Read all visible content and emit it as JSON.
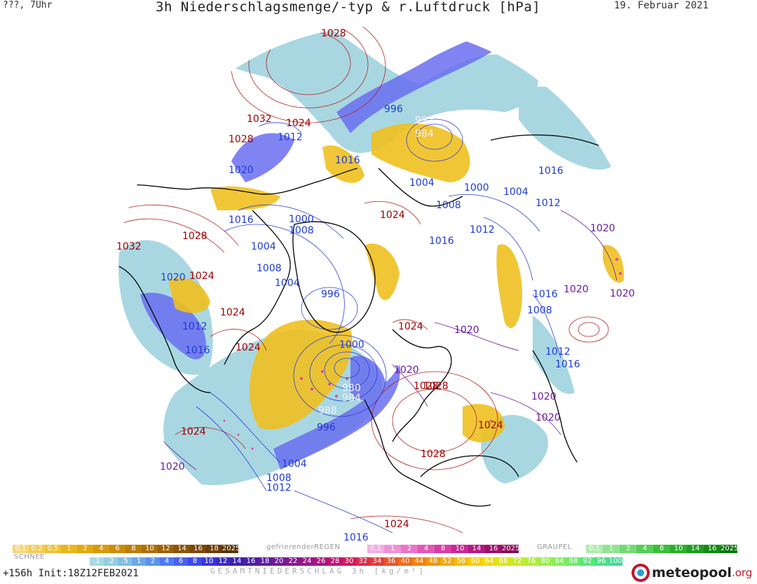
{
  "header": {
    "left": "???, 7Uhr",
    "title": "3h Niederschlagsmenge/-typ & r.Luftdruck [hPa]",
    "date": "19. Februar 2021"
  },
  "footer": {
    "run_info": "+156h  Init:18Z12FEB2021",
    "total_label": "GESAMTNIEDERSCHLAG 3h [kg/m²]",
    "logo_brand": "meteopool",
    "logo_tld": ".org"
  },
  "legend": {
    "snow": {
      "title": "SCHNEE",
      "labels": [
        "0.1",
        "0.2",
        "0.5",
        "1",
        "2",
        "4",
        "6",
        "8",
        "10",
        "12",
        "14",
        "16",
        "18",
        "2025+"
      ]
    },
    "freezing_rain": {
      "title": "gefrierenderREGEN",
      "labels": [
        "0.1",
        "1",
        "2",
        "4",
        "8",
        "10",
        "14",
        "16",
        "2025+"
      ]
    },
    "graupel": {
      "title": "GRAUPEL",
      "labels": [
        "0.1",
        "1",
        "2",
        "4",
        "8",
        "10",
        "14",
        "16",
        "2025+"
      ]
    },
    "total": {
      "labels": [
        ".1",
        ".2",
        ".5",
        "1",
        "2",
        "4",
        "6",
        "8",
        "10",
        "12",
        "14",
        "16",
        "18",
        "20",
        "22",
        "24",
        "26",
        "28",
        "30",
        "32",
        "34",
        "36",
        "40",
        "44",
        "48",
        "52",
        "56",
        "60",
        "64",
        "68",
        "72",
        "76",
        "80",
        "84",
        "88",
        "92",
        "96",
        "100"
      ]
    }
  },
  "colors": {
    "isobar_high": "#b22222",
    "isobar_low": "#2b3fd6",
    "isobar_mid": "#6a1aa0",
    "snow": "#e8b400",
    "rain_light": "#9fd3df",
    "rain_heavy": "#5a5ae8",
    "freezing_rain": "#e0489a",
    "coast": "#000000"
  },
  "pressure_labels": [
    {
      "v": "1028",
      "c": "red"
    },
    {
      "v": "1032",
      "c": "red"
    },
    {
      "v": "1024",
      "c": "red"
    },
    {
      "v": "1028",
      "c": "red"
    },
    {
      "v": "1012",
      "c": "blue"
    },
    {
      "v": "1016",
      "c": "blue"
    },
    {
      "v": "1020",
      "c": "blue"
    },
    {
      "v": "996",
      "c": "blue"
    },
    {
      "v": "992",
      "c": "white"
    },
    {
      "v": "984",
      "c": "white"
    },
    {
      "v": "1004",
      "c": "blue"
    },
    {
      "v": "1000",
      "c": "blue"
    },
    {
      "v": "1004",
      "c": "blue"
    },
    {
      "v": "1016",
      "c": "blue"
    },
    {
      "v": "1008",
      "c": "blue"
    },
    {
      "v": "1012",
      "c": "blue"
    },
    {
      "v": "1016",
      "c": "blue"
    },
    {
      "v": "1024",
      "c": "red"
    },
    {
      "v": "1016",
      "c": "blue"
    },
    {
      "v": "1000",
      "c": "blue"
    },
    {
      "v": "1008",
      "c": "blue"
    },
    {
      "v": "1028",
      "c": "red"
    },
    {
      "v": "1012",
      "c": "blue"
    },
    {
      "v": "1016",
      "c": "blue"
    },
    {
      "v": "1004",
      "c": "blue"
    },
    {
      "v": "1020",
      "c": "purple"
    },
    {
      "v": "1032",
      "c": "red"
    },
    {
      "v": "1008",
      "c": "blue"
    },
    {
      "v": "1020",
      "c": "blue"
    },
    {
      "v": "1024",
      "c": "red"
    },
    {
      "v": "1004",
      "c": "blue"
    },
    {
      "v": "996",
      "c": "blue"
    },
    {
      "v": "1020",
      "c": "purple"
    },
    {
      "v": "1020",
      "c": "purple"
    },
    {
      "v": "1024",
      "c": "red"
    },
    {
      "v": "1008",
      "c": "blue"
    },
    {
      "v": "1024",
      "c": "red"
    },
    {
      "v": "1020",
      "c": "purple"
    },
    {
      "v": "1012",
      "c": "blue"
    },
    {
      "v": "1000",
      "c": "blue"
    },
    {
      "v": "1024",
      "c": "red"
    },
    {
      "v": "1012",
      "c": "blue"
    },
    {
      "v": "1016",
      "c": "blue"
    },
    {
      "v": "1028",
      "c": "red"
    },
    {
      "v": "1016",
      "c": "blue"
    },
    {
      "v": "1020",
      "c": "purple"
    },
    {
      "v": "980",
      "c": "white"
    },
    {
      "v": "984",
      "c": "white"
    },
    {
      "v": "1028",
      "c": "red"
    },
    {
      "v": "988",
      "c": "white"
    },
    {
      "v": "1020",
      "c": "purple"
    },
    {
      "v": "996",
      "c": "blue"
    },
    {
      "v": "1024",
      "c": "red"
    },
    {
      "v": "1020",
      "c": "purple"
    },
    {
      "v": "1024",
      "c": "red"
    },
    {
      "v": "1028",
      "c": "red"
    },
    {
      "v": "1004",
      "c": "blue"
    },
    {
      "v": "1020",
      "c": "purple"
    },
    {
      "v": "1008",
      "c": "blue"
    },
    {
      "v": "1012",
      "c": "blue"
    },
    {
      "v": "1016",
      "c": "blue"
    },
    {
      "v": "1024",
      "c": "red"
    }
  ]
}
